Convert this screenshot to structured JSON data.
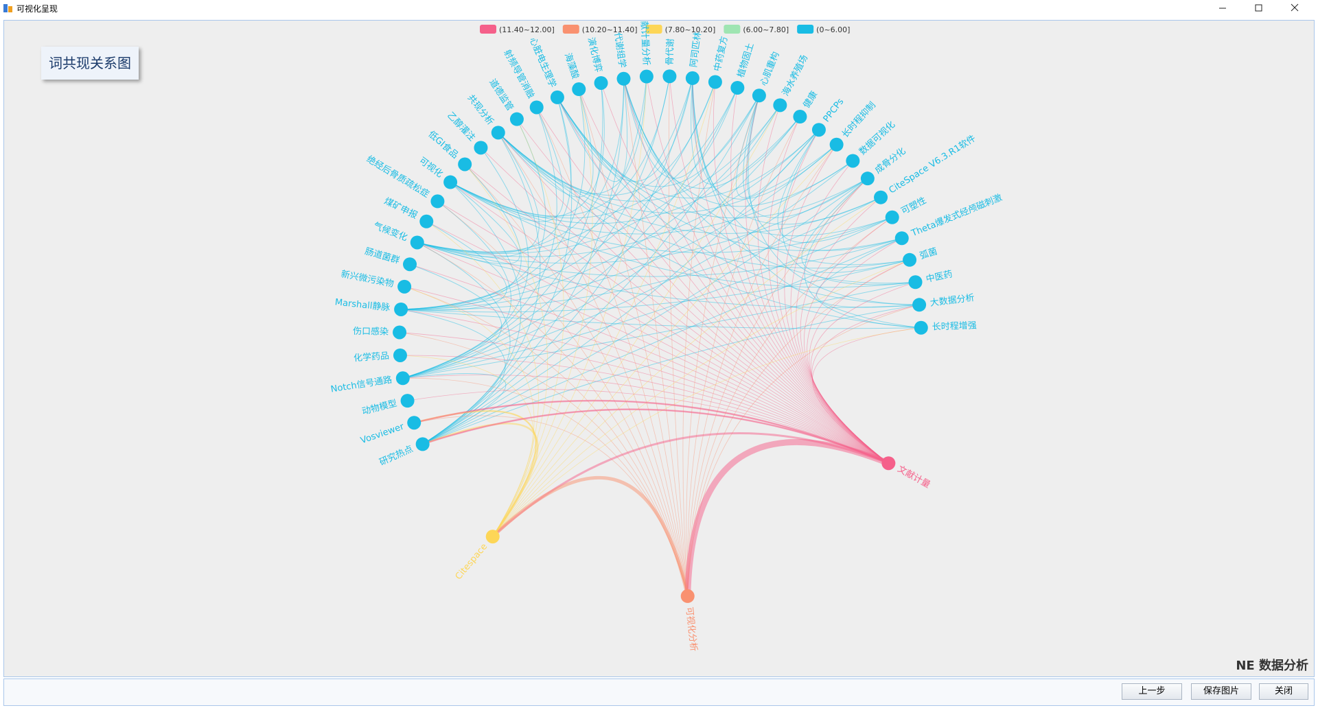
{
  "window": {
    "title": "可视化呈现",
    "brand": "NE 数据分析",
    "buttons": [
      "上一步",
      "保存图片",
      "关闭"
    ]
  },
  "chart_data": {
    "type": "graph",
    "title": "词共现关系图",
    "legend": [
      {
        "label": "(11.40~12.00]",
        "color": "#f5608a"
      },
      {
        "label": "(10.20~11.40]",
        "color": "#f99170"
      },
      {
        "label": "(7.80~10.20]",
        "color": "#fdd657"
      },
      {
        "label": "(6.00~7.80]",
        "color": "#9fe5b2"
      },
      {
        "label": "(0~6.00]",
        "color": "#19bce4"
      }
    ],
    "nodes": [
      {
        "label": "研究热点",
        "color": "#19bce4"
      },
      {
        "label": "Vosviewer",
        "color": "#19bce4"
      },
      {
        "label": "动物模型",
        "color": "#19bce4"
      },
      {
        "label": "Notch信号通路",
        "color": "#19bce4"
      },
      {
        "label": "化学药品",
        "color": "#19bce4"
      },
      {
        "label": "伤口感染",
        "color": "#19bce4"
      },
      {
        "label": "Marshall静脉",
        "color": "#19bce4"
      },
      {
        "label": "新兴微污染物",
        "color": "#19bce4"
      },
      {
        "label": "肠道菌群",
        "color": "#19bce4"
      },
      {
        "label": "气候变化",
        "color": "#19bce4"
      },
      {
        "label": "煤矿申报",
        "color": "#19bce4"
      },
      {
        "label": "绝经后骨质疏松症",
        "color": "#19bce4"
      },
      {
        "label": "可视化",
        "color": "#19bce4"
      },
      {
        "label": "低GI食品",
        "color": "#19bce4"
      },
      {
        "label": "乙醇灌注",
        "color": "#19bce4"
      },
      {
        "label": "共现分析",
        "color": "#19bce4"
      },
      {
        "label": "道德监管",
        "color": "#19bce4"
      },
      {
        "label": "射频导管消融",
        "color": "#19bce4"
      },
      {
        "label": "心脏电生理学",
        "color": "#19bce4"
      },
      {
        "label": "海藻酸",
        "color": "#19bce4"
      },
      {
        "label": "演化博弈",
        "color": "#19bce4"
      },
      {
        "label": "代谢组学",
        "color": "#19bce4"
      },
      {
        "label": "文献计量分析",
        "color": "#19bce4"
      },
      {
        "label": "骨代谢",
        "color": "#19bce4"
      },
      {
        "label": "阿司匹林",
        "color": "#19bce4"
      },
      {
        "label": "中药复方",
        "color": "#19bce4"
      },
      {
        "label": "植物固土",
        "color": "#19bce4"
      },
      {
        "label": "心肌重构",
        "color": "#19bce4"
      },
      {
        "label": "海水养殖场",
        "color": "#19bce4"
      },
      {
        "label": "健康",
        "color": "#19bce4"
      },
      {
        "label": "PPCPs",
        "color": "#19bce4"
      },
      {
        "label": "长时程抑制",
        "color": "#19bce4"
      },
      {
        "label": "数据可视化",
        "color": "#19bce4"
      },
      {
        "label": "成骨分化",
        "color": "#19bce4"
      },
      {
        "label": "CiteSpace V6.3.R1软件",
        "color": "#19bce4"
      },
      {
        "label": "可塑性",
        "color": "#19bce4"
      },
      {
        "label": "Theta爆发式经颅磁刺激",
        "color": "#19bce4"
      },
      {
        "label": "弧菌",
        "color": "#19bce4"
      },
      {
        "label": "中医药",
        "color": "#19bce4"
      },
      {
        "label": "大数据分析",
        "color": "#19bce4"
      },
      {
        "label": "长时程增强",
        "color": "#19bce4"
      }
    ],
    "hubs": [
      {
        "label": "文献计量",
        "color": "#f5608a"
      },
      {
        "label": "可视化分析",
        "color": "#f99170"
      },
      {
        "label": "Citespace",
        "color": "#fdd657"
      }
    ]
  }
}
